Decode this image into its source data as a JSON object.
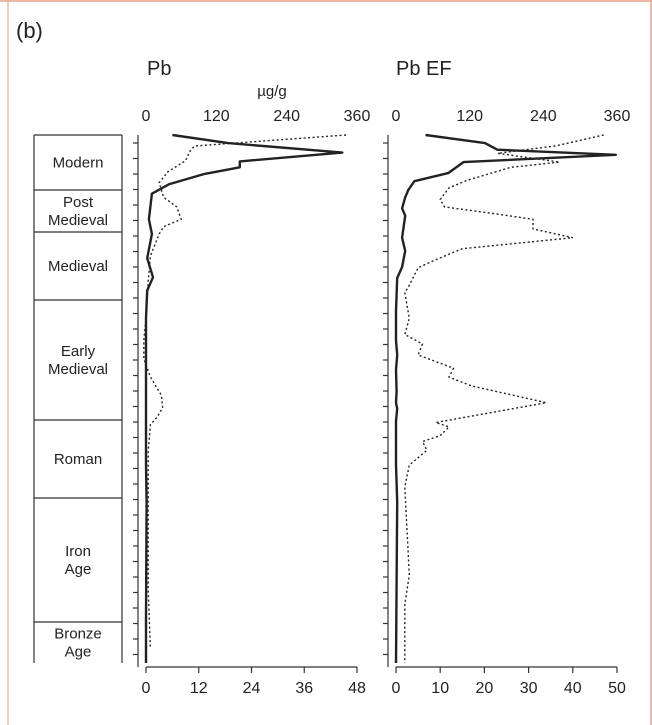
{
  "panel_label": "(b)",
  "colors": {
    "frame": "#e8a08a",
    "ink": "#222222"
  },
  "chronology": [
    "Modern",
    "Post\nMedieval",
    "Medieval",
    "Early\nMedieval",
    "Roman",
    "Iron\nAge",
    "Bronze\nAge"
  ],
  "chart_data": [
    {
      "type": "line",
      "title": "Pb",
      "top_axis": {
        "label": "µg/g",
        "ticks": [
          0,
          120,
          240,
          360
        ],
        "range": [
          0,
          360
        ]
      },
      "bottom_axis": {
        "ticks": [
          0,
          12,
          24,
          36,
          48
        ],
        "range": [
          0,
          48
        ]
      },
      "y_direction": "depth (top = youngest)",
      "series": [
        {
          "style": "solid",
          "axis": "top",
          "points": [
            [
              45,
              0
            ],
            [
              140,
              11
            ],
            [
              335,
              24
            ],
            [
              160,
              36
            ],
            [
              160,
              44
            ],
            [
              100,
              53
            ],
            [
              40,
              67
            ],
            [
              10,
              80
            ],
            [
              5,
              115
            ],
            [
              10,
              135
            ],
            [
              2,
              168
            ],
            [
              12,
              194
            ],
            [
              2,
              212
            ],
            [
              0,
              250
            ],
            [
              0,
              365
            ],
            [
              0,
              415
            ],
            [
              0,
              450
            ],
            [
              1,
              500
            ],
            [
              0,
              660
            ],
            [
              0,
              720
            ]
          ]
        },
        {
          "style": "dotted",
          "axis": "bottom",
          "points": [
            [
              45.5,
              0
            ],
            [
              11,
              15
            ],
            [
              10,
              22
            ],
            [
              9,
              35
            ],
            [
              5,
              50
            ],
            [
              3,
              65
            ],
            [
              4,
              85
            ],
            [
              7,
              98
            ],
            [
              8,
              115
            ],
            [
              4,
              125
            ],
            [
              3,
              135
            ],
            [
              1,
              165
            ],
            [
              0.5,
              200
            ],
            [
              0,
              250
            ],
            [
              -0.5,
              280
            ],
            [
              -0.5,
              305
            ],
            [
              1,
              330
            ],
            [
              3.5,
              355
            ],
            [
              3.8,
              372
            ],
            [
              2.5,
              385
            ],
            [
              1,
              395
            ],
            [
              0.8,
              410
            ],
            [
              0.5,
              430
            ],
            [
              0.5,
              480
            ],
            [
              0.5,
              620
            ],
            [
              1,
              700
            ]
          ]
        }
      ]
    },
    {
      "type": "line",
      "title": "Pb EF",
      "top_axis": {
        "ticks": [
          0,
          120,
          240,
          360
        ],
        "range": [
          0,
          360
        ]
      },
      "bottom_axis": {
        "ticks": [
          0,
          10,
          20,
          30,
          40,
          50
        ],
        "range": [
          0,
          50
        ]
      },
      "y_direction": "depth (top = youngest)",
      "series": [
        {
          "style": "solid",
          "axis": "top",
          "points": [
            [
              48,
              0
            ],
            [
              145,
              11
            ],
            [
              165,
              20
            ],
            [
              358,
              27
            ],
            [
              110,
              37
            ],
            [
              85,
              52
            ],
            [
              30,
              63
            ],
            [
              20,
              75
            ],
            [
              15,
              85
            ],
            [
              10,
              100
            ],
            [
              15,
              110
            ],
            [
              10,
              140
            ],
            [
              15,
              158
            ],
            [
              10,
              180
            ],
            [
              2,
              195
            ],
            [
              0,
              240
            ],
            [
              0,
              280
            ],
            [
              2,
              300
            ],
            [
              0,
              320
            ],
            [
              1,
              350
            ],
            [
              0,
              365
            ],
            [
              2,
              373
            ],
            [
              0,
              390
            ],
            [
              0,
              450
            ],
            [
              2,
              500
            ],
            [
              0,
              720
            ]
          ]
        },
        {
          "style": "dotted",
          "axis": "bottom",
          "points": [
            [
              47,
              0
            ],
            [
              36,
              15
            ],
            [
              23,
              25
            ],
            [
              37,
              37
            ],
            [
              26,
              44
            ],
            [
              16,
              62
            ],
            [
              12,
              72
            ],
            [
              10,
              88
            ],
            [
              11,
              98
            ],
            [
              22,
              107
            ],
            [
              31,
              115
            ],
            [
              31,
              128
            ],
            [
              40,
              140
            ],
            [
              15,
              155
            ],
            [
              9,
              170
            ],
            [
              5,
              181
            ],
            [
              3,
              205
            ],
            [
              2,
              215
            ],
            [
              3,
              250
            ],
            [
              2,
              272
            ],
            [
              6,
              285
            ],
            [
              5,
              300
            ],
            [
              13,
              318
            ],
            [
              12,
              330
            ],
            [
              17,
              342
            ],
            [
              34,
              365
            ],
            [
              9,
              392
            ],
            [
              12,
              398
            ],
            [
              10,
              410
            ],
            [
              6,
              418
            ],
            [
              7,
              430
            ],
            [
              5,
              440
            ],
            [
              3,
              450
            ],
            [
              2,
              480
            ],
            [
              3,
              600
            ],
            [
              2,
              640
            ],
            [
              2,
              720
            ]
          ]
        }
      ]
    }
  ]
}
